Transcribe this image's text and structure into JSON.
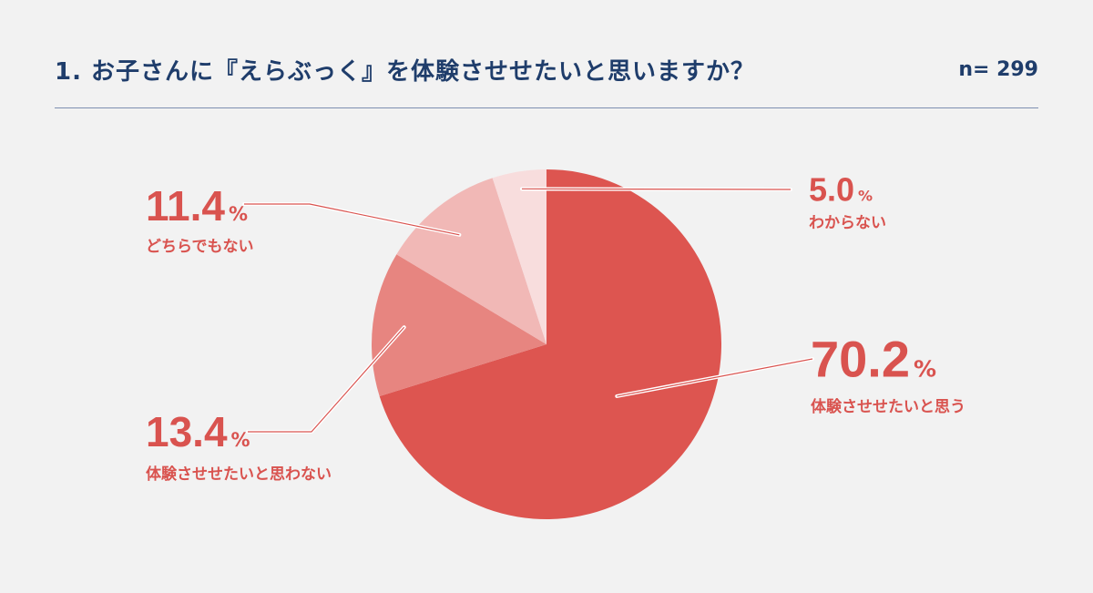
{
  "header": {
    "title": "1. お子さんに『えらぶっく』を体験させせたいと思いますか？",
    "n_label": "n= 299"
  },
  "colors": {
    "title": "#1f3d6b",
    "label": "#d9534f",
    "slices": [
      "#dd5550",
      "#e78580",
      "#f1b8b6",
      "#f8dddd"
    ]
  },
  "chart_data": {
    "type": "pie",
    "start_angle_deg": 0,
    "direction": "clockwise",
    "slices": [
      {
        "label": "体験させせたいと思う",
        "value": 70.2,
        "display": "70.2",
        "unit": "%"
      },
      {
        "label": "体験させせたいと思わない",
        "value": 13.4,
        "display": "13.4",
        "unit": "%"
      },
      {
        "label": "どちらでもない",
        "value": 11.4,
        "display": "11.4",
        "unit": "%"
      },
      {
        "label": "わからない",
        "value": 5.0,
        "display": "5.0",
        "unit": "%"
      }
    ]
  }
}
